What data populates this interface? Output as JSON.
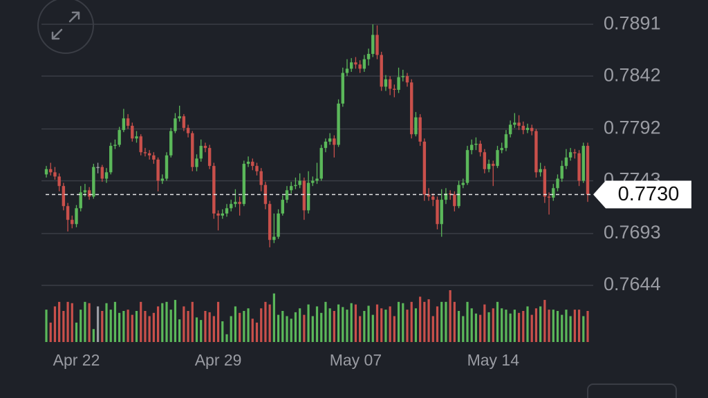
{
  "chart_data": {
    "type": "candlestick",
    "categories": [
      null,
      null,
      null,
      null,
      null,
      null,
      null,
      "Apr 22",
      null,
      null,
      null,
      null,
      null,
      null,
      null,
      null,
      null,
      null,
      null,
      null,
      null,
      null,
      null,
      null,
      null,
      null,
      null,
      null,
      null,
      null,
      null,
      null,
      null,
      null,
      null,
      null,
      null,
      null,
      null,
      null,
      "Apr 29",
      null,
      null,
      null,
      null,
      null,
      null,
      null,
      null,
      null,
      null,
      null,
      null,
      null,
      null,
      null,
      null,
      null,
      null,
      null,
      null,
      null,
      null,
      null,
      null,
      null,
      null,
      null,
      null,
      null,
      null,
      null,
      "May 07",
      null,
      null,
      null,
      null,
      null,
      null,
      null,
      null,
      null,
      null,
      null,
      null,
      null,
      null,
      null,
      null,
      null,
      null,
      null,
      null,
      null,
      null,
      null,
      null,
      null,
      null,
      null,
      null,
      null,
      null,
      null,
      "May 14",
      null,
      null,
      null,
      null,
      null,
      null,
      null,
      null,
      null,
      null,
      null,
      null,
      null,
      null,
      null,
      null,
      null,
      null,
      null,
      null,
      null,
      null
    ],
    "open": [
      0.7749,
      0.7754,
      0.7751,
      0.7747,
      0.7738,
      0.7719,
      0.7706,
      0.7702,
      0.7717,
      0.7732,
      0.7734,
      0.7728,
      0.7756,
      0.7756,
      0.7745,
      0.7751,
      0.7776,
      0.7777,
      0.7791,
      0.7802,
      0.7795,
      0.7783,
      0.7785,
      0.777,
      0.7769,
      0.7767,
      0.7763,
      0.7743,
      0.7745,
      0.7767,
      0.779,
      0.7802,
      0.7804,
      0.7793,
      0.7788,
      0.7756,
      0.7764,
      0.7776,
      0.7774,
      0.7757,
      0.7712,
      0.771,
      0.7712,
      0.7717,
      0.7721,
      0.7723,
      0.7721,
      0.7759,
      0.7761,
      0.7757,
      0.7752,
      0.7739,
      0.7721,
      0.7687,
      0.769,
      0.7712,
      0.7725,
      0.7734,
      0.7738,
      0.7739,
      0.7743,
      0.7715,
      0.7741,
      0.7743,
      0.7745,
      0.7774,
      0.778,
      0.7783,
      0.7777,
      0.7816,
      0.7845,
      0.7849,
      0.7855,
      0.7853,
      0.7849,
      0.7858,
      0.7863,
      0.7881,
      0.7862,
      0.7832,
      0.7839,
      0.783,
      0.7829,
      0.7841,
      0.7842,
      0.7836,
      0.7787,
      0.7803,
      0.778,
      0.773,
      0.7728,
      0.7725,
      0.7702,
      0.7725,
      0.7731,
      0.773,
      0.7719,
      0.7739,
      0.7741,
      0.7772,
      0.7777,
      0.7778,
      0.777,
      0.7754,
      0.7759,
      0.7757,
      0.7772,
      0.7774,
      0.7787,
      0.7796,
      0.7798,
      0.7795,
      0.7791,
      0.7793,
      0.779,
      0.7751,
      0.7754,
      0.7728,
      0.7727,
      0.7736,
      0.7745,
      0.7757,
      0.7765,
      0.777,
      0.7769,
      0.7743,
      0.7776
    ],
    "high": [
      0.7757,
      0.776,
      0.7756,
      0.775,
      0.7741,
      0.7722,
      0.771,
      0.772,
      0.7738,
      0.774,
      0.7737,
      0.7759,
      0.776,
      0.7758,
      0.7755,
      0.7779,
      0.7782,
      0.7794,
      0.7811,
      0.7806,
      0.7798,
      0.779,
      0.7787,
      0.7774,
      0.7772,
      0.777,
      0.7765,
      0.7749,
      0.777,
      0.7793,
      0.7807,
      0.7814,
      0.7806,
      0.7796,
      0.779,
      0.7768,
      0.7782,
      0.7779,
      0.7777,
      0.776,
      0.7715,
      0.7716,
      0.7721,
      0.7725,
      0.7735,
      0.7728,
      0.7762,
      0.7766,
      0.7764,
      0.776,
      0.7755,
      0.7742,
      0.7724,
      0.7712,
      0.7716,
      0.7729,
      0.7738,
      0.7742,
      0.7746,
      0.775,
      0.7746,
      0.7752,
      0.7747,
      0.776,
      0.7777,
      0.7783,
      0.7788,
      0.7786,
      0.782,
      0.785,
      0.7858,
      0.7859,
      0.786,
      0.7857,
      0.7862,
      0.7868,
      0.7891,
      0.789,
      0.7865,
      0.7843,
      0.7842,
      0.7834,
      0.785,
      0.7848,
      0.7845,
      0.7839,
      0.7808,
      0.7806,
      0.7783,
      0.7736,
      0.7731,
      0.7728,
      0.7735,
      0.7736,
      0.7734,
      0.7733,
      0.7743,
      0.7745,
      0.7776,
      0.7782,
      0.7784,
      0.7781,
      0.7773,
      0.7763,
      0.7762,
      0.7776,
      0.7779,
      0.7791,
      0.78,
      0.7807,
      0.7805,
      0.7799,
      0.7797,
      0.7796,
      0.7792,
      0.776,
      0.7757,
      0.7732,
      0.774,
      0.7749,
      0.7762,
      0.7773,
      0.7774,
      0.7773,
      0.7772,
      0.7779,
      0.7779
    ],
    "low": [
      0.7746,
      0.7748,
      0.7744,
      0.7733,
      0.7715,
      0.7695,
      0.7698,
      0.7699,
      0.7714,
      0.7728,
      0.7725,
      0.7726,
      0.775,
      0.7742,
      0.7741,
      0.7749,
      0.7773,
      0.7775,
      0.7789,
      0.7792,
      0.778,
      0.7779,
      0.7767,
      0.7766,
      0.7763,
      0.7759,
      0.7733,
      0.774,
      0.7743,
      0.7765,
      0.7788,
      0.7799,
      0.779,
      0.7784,
      0.7752,
      0.7752,
      0.7761,
      0.777,
      0.7754,
      0.7707,
      0.7696,
      0.7707,
      0.7709,
      0.7714,
      0.7718,
      0.771,
      0.7719,
      0.7756,
      0.7753,
      0.7748,
      0.7733,
      0.7716,
      0.768,
      0.7684,
      0.7688,
      0.771,
      0.7722,
      0.7731,
      0.7735,
      0.7736,
      0.7706,
      0.7712,
      0.7738,
      0.774,
      0.7743,
      0.777,
      0.7777,
      0.7765,
      0.7775,
      0.7813,
      0.7842,
      0.7846,
      0.7849,
      0.7845,
      0.7846,
      0.7852,
      0.786,
      0.7858,
      0.7828,
      0.7828,
      0.7824,
      0.7822,
      0.7826,
      0.7837,
      0.7832,
      0.7783,
      0.7785,
      0.7776,
      0.7724,
      0.7724,
      0.7719,
      0.7697,
      0.769,
      0.7721,
      0.7725,
      0.7714,
      0.7717,
      0.7736,
      0.7739,
      0.7768,
      0.7772,
      0.7766,
      0.775,
      0.7751,
      0.7738,
      0.7755,
      0.7769,
      0.7771,
      0.7784,
      0.7793,
      0.7791,
      0.7787,
      0.7788,
      0.7786,
      0.7746,
      0.7747,
      0.7722,
      0.7711,
      0.7724,
      0.7733,
      0.7742,
      0.7754,
      0.7762,
      0.7764,
      0.7738,
      0.7741,
      0.7723
    ],
    "close": [
      0.7754,
      0.7751,
      0.7747,
      0.7738,
      0.7719,
      0.7706,
      0.7702,
      0.7717,
      0.7732,
      0.7734,
      0.7728,
      0.7756,
      0.7756,
      0.7745,
      0.7751,
      0.7776,
      0.7777,
      0.7791,
      0.7802,
      0.7795,
      0.7783,
      0.7785,
      0.777,
      0.7769,
      0.7767,
      0.7763,
      0.7743,
      0.7745,
      0.7767,
      0.779,
      0.7802,
      0.7804,
      0.7793,
      0.7788,
      0.7756,
      0.7764,
      0.7776,
      0.7774,
      0.7757,
      0.7712,
      0.771,
      0.7712,
      0.7717,
      0.7721,
      0.7723,
      0.7721,
      0.7759,
      0.7761,
      0.7757,
      0.7752,
      0.7739,
      0.7721,
      0.7687,
      0.769,
      0.7712,
      0.7725,
      0.7734,
      0.7738,
      0.7739,
      0.7743,
      0.7715,
      0.7741,
      0.7743,
      0.7745,
      0.7774,
      0.778,
      0.7783,
      0.7777,
      0.7816,
      0.7845,
      0.7849,
      0.7855,
      0.7853,
      0.7849,
      0.7858,
      0.7863,
      0.7881,
      0.7862,
      0.7832,
      0.7839,
      0.783,
      0.7829,
      0.7841,
      0.7842,
      0.7836,
      0.7787,
      0.7803,
      0.778,
      0.773,
      0.7728,
      0.7725,
      0.7702,
      0.7725,
      0.7731,
      0.773,
      0.7719,
      0.7739,
      0.7741,
      0.7772,
      0.7777,
      0.7778,
      0.777,
      0.7754,
      0.7759,
      0.7757,
      0.7772,
      0.7774,
      0.7787,
      0.7796,
      0.7798,
      0.7795,
      0.7791,
      0.7793,
      0.779,
      0.7751,
      0.7754,
      0.7728,
      0.7727,
      0.7736,
      0.7745,
      0.7757,
      0.7765,
      0.777,
      0.7769,
      0.7743,
      0.7776,
      0.773
    ],
    "volume": [
      50,
      30,
      55,
      62,
      48,
      62,
      60,
      30,
      50,
      62,
      60,
      20,
      55,
      48,
      60,
      50,
      62,
      45,
      48,
      50,
      42,
      48,
      62,
      48,
      40,
      45,
      55,
      60,
      62,
      50,
      65,
      35,
      55,
      48,
      62,
      38,
      34,
      48,
      46,
      40,
      62,
      32,
      12,
      40,
      55,
      45,
      48,
      52,
      36,
      30,
      52,
      62,
      58,
      75,
      42,
      48,
      40,
      36,
      46,
      52,
      42,
      58,
      40,
      55,
      45,
      62,
      52,
      48,
      58,
      54,
      50,
      60,
      58,
      40,
      48,
      56,
      42,
      58,
      52,
      50,
      55,
      40,
      62,
      60,
      50,
      62,
      52,
      70,
      62,
      66,
      40,
      55,
      62,
      62,
      80,
      62,
      48,
      40,
      62,
      52,
      44,
      42,
      58,
      46,
      52,
      62,
      52,
      50,
      44,
      50,
      45,
      48,
      55,
      42,
      52,
      55,
      65,
      50,
      50,
      48,
      42,
      50,
      40,
      50,
      50,
      40,
      48
    ],
    "colors": {
      "up": "#5bb85a",
      "down": "#c9504b",
      "flat": "#9a9ca3"
    },
    "ylim": [
      0.7644,
      0.7914
    ],
    "yticks": [
      0.7644,
      0.7693,
      0.7743,
      0.7792,
      0.7842,
      0.7891
    ],
    "grid": true,
    "last_price": {
      "value": 0.773,
      "label": "0.7730"
    }
  }
}
